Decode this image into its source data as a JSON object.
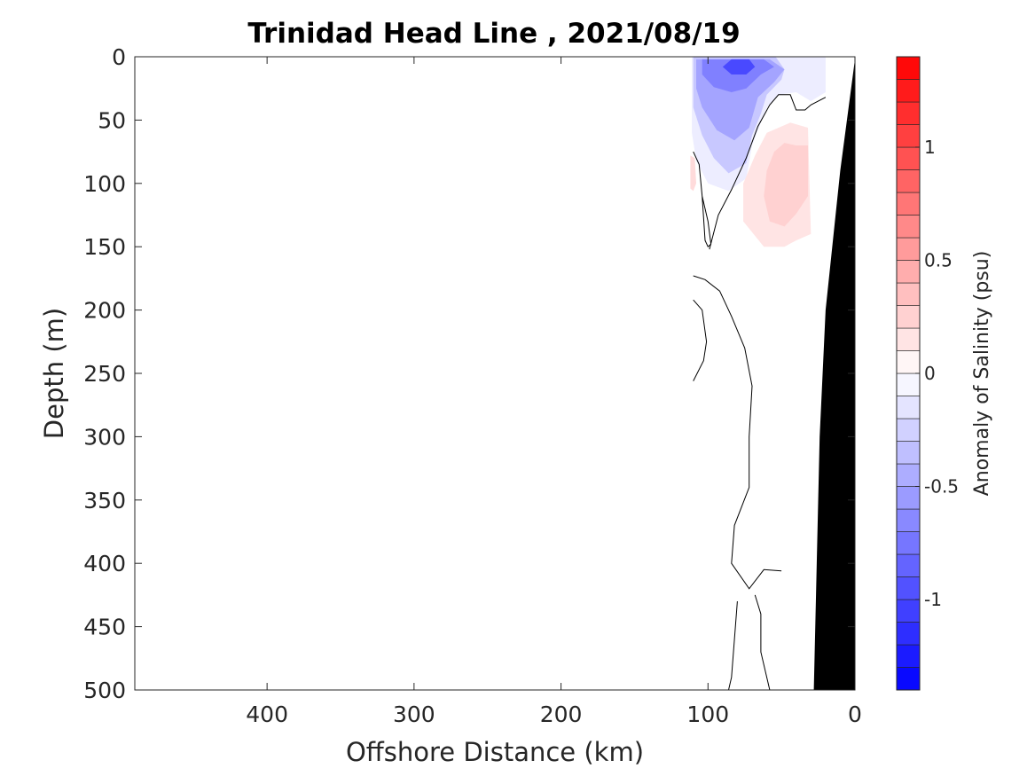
{
  "chart_data": {
    "type": "heatmap",
    "title": "Trinidad Head Line , 2021/08/19",
    "xlabel": "Offshore Distance (km)",
    "ylabel": "Depth (m)",
    "xlim": [
      490,
      0
    ],
    "ylim": [
      0,
      500
    ],
    "x_reversed": true,
    "y_reversed": true,
    "x_ticks": [
      {
        "value": 400,
        "label": "400"
      },
      {
        "value": 300,
        "label": "300"
      },
      {
        "value": 200,
        "label": "200"
      },
      {
        "value": 100,
        "label": "100"
      },
      {
        "value": 0,
        "label": "0"
      }
    ],
    "y_ticks": [
      {
        "value": 0,
        "label": "0"
      },
      {
        "value": 50,
        "label": "50"
      },
      {
        "value": 100,
        "label": "100"
      },
      {
        "value": 150,
        "label": "150"
      },
      {
        "value": 200,
        "label": "200"
      },
      {
        "value": 250,
        "label": "250"
      },
      {
        "value": 300,
        "label": "300"
      },
      {
        "value": 350,
        "label": "350"
      },
      {
        "value": 400,
        "label": "400"
      },
      {
        "value": 450,
        "label": "450"
      },
      {
        "value": 500,
        "label": "500"
      }
    ],
    "colorbar": {
      "label": "Anomaly of Salinity (psu)",
      "range": [
        -1.4,
        1.4
      ],
      "step": 0.1,
      "low_color": "#0000ff",
      "mid_color": "#ffffff",
      "high_color": "#ff0000",
      "ticks": [
        {
          "value": 1,
          "label": "1"
        },
        {
          "value": 0.5,
          "label": "0.5"
        },
        {
          "value": 0,
          "label": "0"
        },
        {
          "value": -0.5,
          "label": "-0.5"
        },
        {
          "value": -1,
          "label": "-1"
        }
      ]
    },
    "filled_regions": [
      {
        "name": "fresh-core",
        "level": -1.0,
        "points": [
          [
            84,
            2
          ],
          [
            72,
            2
          ],
          [
            68,
            8
          ],
          [
            74,
            14
          ],
          [
            84,
            14
          ],
          [
            90,
            8
          ]
        ]
      },
      {
        "name": "fresh-mid",
        "level": -0.7,
        "points": [
          [
            104,
            2
          ],
          [
            62,
            2
          ],
          [
            55,
            8
          ],
          [
            64,
            14
          ],
          [
            74,
            25
          ],
          [
            84,
            28
          ],
          [
            96,
            24
          ],
          [
            104,
            14
          ]
        ]
      },
      {
        "name": "fresh-lower",
        "level": -0.5,
        "points": [
          [
            108,
            2
          ],
          [
            58,
            2
          ],
          [
            48,
            10
          ],
          [
            55,
            20
          ],
          [
            66,
            32
          ],
          [
            72,
            56
          ],
          [
            82,
            66
          ],
          [
            94,
            58
          ],
          [
            104,
            40
          ],
          [
            108,
            25
          ]
        ]
      },
      {
        "name": "fresh-outer",
        "level": -0.3,
        "points": [
          [
            110,
            0
          ],
          [
            54,
            0
          ],
          [
            48,
            10
          ],
          [
            50,
            18
          ],
          [
            60,
            30
          ],
          [
            64,
            45
          ],
          [
            70,
            62
          ],
          [
            74,
            84
          ],
          [
            86,
            92
          ],
          [
            96,
            80
          ],
          [
            104,
            62
          ],
          [
            110,
            40
          ]
        ]
      },
      {
        "name": "fresh-edge",
        "level": -0.1,
        "points": [
          [
            111,
            0
          ],
          [
            20,
            0
          ],
          [
            20,
            28
          ],
          [
            30,
            35
          ],
          [
            40,
            28
          ],
          [
            52,
            30
          ],
          [
            60,
            40
          ],
          [
            64,
            52
          ],
          [
            70,
            70
          ],
          [
            74,
            96
          ],
          [
            86,
            106
          ],
          [
            100,
            100
          ],
          [
            108,
            82
          ],
          [
            111,
            60
          ]
        ]
      },
      {
        "name": "salty-outer",
        "level": 0.15,
        "points": [
          [
            60,
            60
          ],
          [
            44,
            52
          ],
          [
            32,
            56
          ],
          [
            30,
            140
          ],
          [
            40,
            145
          ],
          [
            48,
            150
          ],
          [
            62,
            150
          ],
          [
            76,
            130
          ],
          [
            76,
            100
          ],
          [
            68,
            78
          ]
        ]
      },
      {
        "name": "salty-inner",
        "level": 0.25,
        "points": [
          [
            55,
            75
          ],
          [
            48,
            68
          ],
          [
            40,
            70
          ],
          [
            32,
            70
          ],
          [
            32,
            110
          ],
          [
            40,
            124
          ],
          [
            48,
            134
          ],
          [
            58,
            130
          ],
          [
            62,
            110
          ],
          [
            60,
            90
          ]
        ]
      },
      {
        "name": "salty-pocket",
        "level": 0.2,
        "points": [
          [
            112,
            78
          ],
          [
            109,
            80
          ],
          [
            108,
            100
          ],
          [
            110,
            106
          ],
          [
            112,
            104
          ]
        ]
      }
    ],
    "zero_contours": [
      [
        [
          110,
          75
        ],
        [
          106,
          85
        ],
        [
          104,
          110
        ],
        [
          102,
          145
        ],
        [
          100,
          150
        ],
        [
          98,
          148
        ],
        [
          100,
          130
        ],
        [
          104,
          110
        ],
        [
          106,
          85
        ]
      ],
      [
        [
          99,
          152
        ],
        [
          93,
          125
        ],
        [
          84,
          105
        ],
        [
          74,
          80
        ],
        [
          66,
          55
        ],
        [
          58,
          38
        ],
        [
          52,
          30
        ],
        [
          44,
          30
        ],
        [
          40,
          42
        ],
        [
          34,
          42
        ],
        [
          30,
          38
        ],
        [
          20,
          32
        ]
      ],
      [
        [
          110,
          173
        ],
        [
          102,
          176
        ],
        [
          92,
          185
        ],
        [
          84,
          205
        ],
        [
          75,
          230
        ],
        [
          70,
          260
        ],
        [
          72,
          300
        ],
        [
          72,
          340
        ],
        [
          82,
          370
        ],
        [
          84,
          400
        ],
        [
          72,
          420
        ],
        [
          62,
          405
        ],
        [
          50,
          406
        ]
      ],
      [
        [
          110,
          192
        ],
        [
          104,
          200
        ],
        [
          101,
          225
        ],
        [
          103,
          240
        ],
        [
          110,
          256
        ]
      ],
      [
        [
          80,
          430
        ],
        [
          82,
          460
        ],
        [
          84,
          490
        ],
        [
          86,
          500
        ]
      ],
      [
        [
          68,
          425
        ],
        [
          64,
          440
        ],
        [
          64,
          470
        ],
        [
          58,
          500
        ]
      ]
    ],
    "seafloor": {
      "color": "#000000",
      "points": [
        [
          0,
          2
        ],
        [
          10,
          90
        ],
        [
          20,
          200
        ],
        [
          24,
          300
        ],
        [
          26,
          400
        ],
        [
          28,
          500
        ],
        [
          0,
          500
        ]
      ]
    }
  }
}
